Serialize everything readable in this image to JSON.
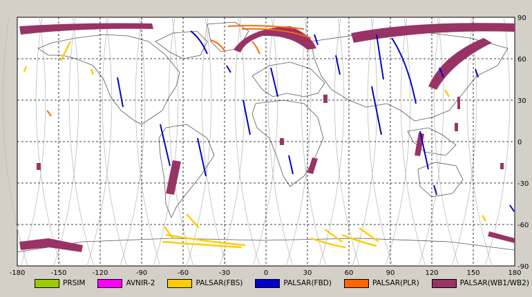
{
  "map": {
    "lon_ticks": [
      "-180",
      "-150",
      "-120",
      "-90",
      "-60",
      "-30",
      "0",
      "30",
      "60",
      "90",
      "120",
      "150",
      "180"
    ],
    "lat_ticks": [
      "90",
      "60",
      "30",
      "0",
      "-30",
      "-60",
      "-90"
    ],
    "lon_range": [
      -180,
      180
    ],
    "lat_range": [
      -90,
      90
    ],
    "grid": "dashed",
    "background": "#ffffff",
    "coastline_color": "#555555",
    "orbit_track_color": "#bbbbbb"
  },
  "legend": [
    {
      "label": "PRSIM",
      "color": "#99cc00"
    },
    {
      "label": "AVNIR-2",
      "color": "#ff00ff"
    },
    {
      "label": "PALSAR(FBS)",
      "color": "#ffcc00"
    },
    {
      "label": "PALSAR(FBD)",
      "color": "#0000cc"
    },
    {
      "label": "PALSAR(PLR)",
      "color": "#ff6600"
    },
    {
      "label": "PALSAR(WB1/WB2)",
      "color": "#993366"
    }
  ]
}
